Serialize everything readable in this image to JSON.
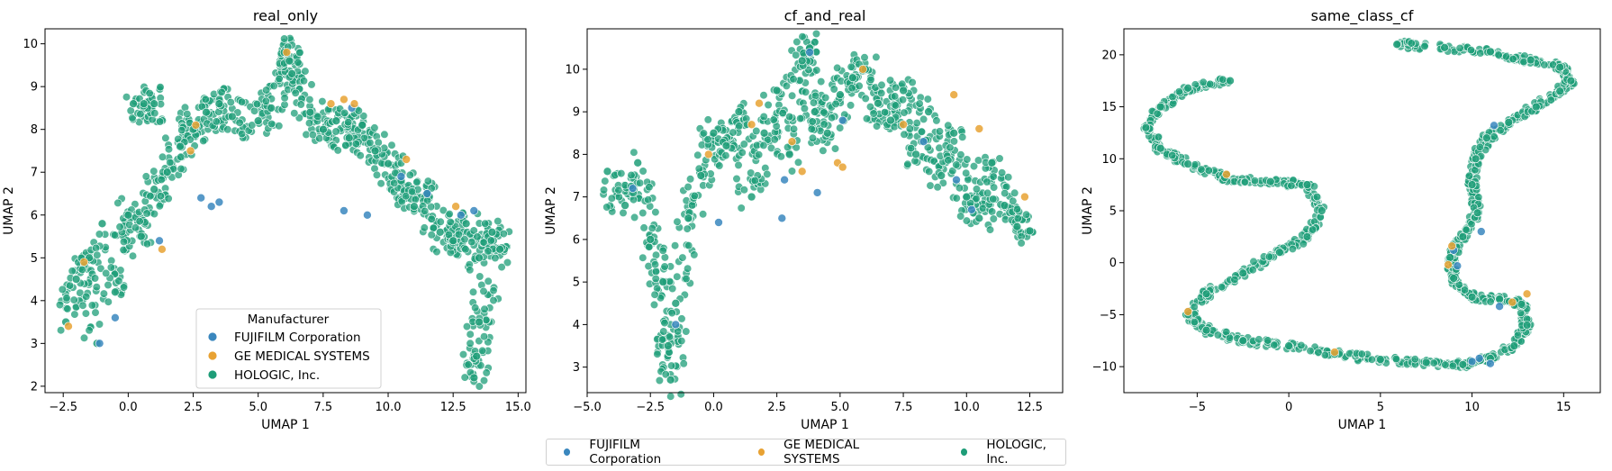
{
  "legend_title": "Manufacturer",
  "manufacturers": [
    {
      "name": "FUJIFILM Corporation",
      "color": "#3a87be"
    },
    {
      "name": "GE MEDICAL SYSTEMS",
      "color": "#e8a233"
    },
    {
      "name": "HOLOGIC, Inc.",
      "color": "#1e9d78"
    }
  ],
  "chart_data": [
    {
      "type": "scatter",
      "title": "real_only",
      "xlabel": "UMAP 1",
      "ylabel": "UMAP 2",
      "xlim": [
        -3.2,
        15.3
      ],
      "ylim": [
        1.85,
        10.35
      ],
      "xticks": [
        -2.5,
        0.0,
        2.5,
        5.0,
        7.5,
        10.0,
        12.5,
        15.0
      ],
      "xtick_labels": [
        "−2.5",
        "0.0",
        "2.5",
        "5.0",
        "7.5",
        "10.0",
        "12.5",
        "15.0"
      ],
      "yticks": [
        2,
        3,
        4,
        5,
        6,
        7,
        8,
        9,
        10
      ],
      "ytick_labels": [
        "2",
        "3",
        "4",
        "5",
        "6",
        "7",
        "8",
        "9",
        "10"
      ],
      "legend": "lower-center",
      "grid": false,
      "series": [
        {
          "name": "HOLOGIC, Inc.",
          "approx_shape": "arch from (-2.5,3.5) up to (5,8.5) then down to (14,5.5), with a tail near x=13.5 down to y=2.2",
          "points": [
            [
              -2.4,
              3.5
            ],
            [
              -2.0,
              4.5
            ],
            [
              -1.5,
              5.0
            ],
            [
              -1.2,
              3.0
            ],
            [
              -1.0,
              5.8
            ],
            [
              -0.5,
              4.2
            ],
            [
              0.0,
              6.0
            ],
            [
              0.5,
              5.5
            ],
            [
              1.0,
              6.6
            ],
            [
              1.5,
              7.0
            ],
            [
              2.0,
              7.6
            ],
            [
              2.5,
              8.0
            ],
            [
              3.0,
              8.4
            ],
            [
              3.5,
              8.6
            ],
            [
              4.0,
              8.3
            ],
            [
              5.0,
              8.2
            ],
            [
              5.5,
              8.5
            ],
            [
              6.0,
              9.8
            ],
            [
              6.2,
              9.6
            ],
            [
              6.3,
              9.3
            ],
            [
              7.0,
              8.4
            ],
            [
              7.5,
              8.0
            ],
            [
              8.0,
              8.2
            ],
            [
              8.5,
              7.8
            ],
            [
              9.0,
              8.1
            ],
            [
              9.5,
              7.5
            ],
            [
              10.0,
              7.2
            ],
            [
              10.5,
              6.8
            ],
            [
              11.0,
              6.2
            ],
            [
              11.5,
              6.5
            ],
            [
              12.0,
              5.6
            ],
            [
              12.5,
              5.4
            ],
            [
              13.0,
              5.8
            ],
            [
              13.5,
              5.0
            ],
            [
              14.0,
              5.6
            ],
            [
              14.3,
              5.2
            ],
            [
              13.5,
              3.5
            ],
            [
              13.4,
              2.7
            ],
            [
              13.3,
              2.2
            ],
            [
              0.2,
              8.6
            ],
            [
              0.6,
              8.6
            ],
            [
              1.0,
              8.6
            ]
          ]
        },
        {
          "name": "FUJIFILM Corporation",
          "points": [
            [
              -1.1,
              3.0
            ],
            [
              -0.5,
              3.6
            ],
            [
              1.2,
              5.4
            ],
            [
              2.8,
              6.4
            ],
            [
              3.2,
              6.2
            ],
            [
              3.5,
              6.3
            ],
            [
              8.3,
              6.1
            ],
            [
              8.6,
              8.5
            ],
            [
              9.2,
              6.0
            ],
            [
              10.5,
              6.9
            ],
            [
              11.5,
              6.5
            ],
            [
              12.8,
              6.0
            ],
            [
              13.3,
              6.1
            ]
          ]
        },
        {
          "name": "GE MEDICAL SYSTEMS",
          "points": [
            [
              -2.3,
              3.4
            ],
            [
              -1.7,
              4.9
            ],
            [
              1.3,
              5.2
            ],
            [
              2.4,
              7.5
            ],
            [
              2.6,
              8.1
            ],
            [
              6.1,
              9.8
            ],
            [
              7.8,
              8.6
            ],
            [
              8.3,
              8.7
            ],
            [
              8.7,
              8.6
            ],
            [
              10.7,
              7.3
            ],
            [
              12.6,
              6.2
            ]
          ]
        }
      ]
    },
    {
      "type": "scatter",
      "title": "cf_and_real",
      "xlabel": "UMAP 1",
      "ylabel": "UMAP 2",
      "xlim": [
        -5.0,
        13.8
      ],
      "ylim": [
        2.4,
        10.95
      ],
      "xticks": [
        -5.0,
        -2.5,
        0.0,
        2.5,
        5.0,
        7.5,
        10.0,
        12.5
      ],
      "xtick_labels": [
        "−5.0",
        "−2.5",
        "0.0",
        "2.5",
        "5.0",
        "7.5",
        "10.0",
        "12.5"
      ],
      "yticks": [
        3,
        4,
        5,
        6,
        7,
        8,
        9,
        10
      ],
      "ytick_labels": [
        "3",
        "4",
        "5",
        "6",
        "7",
        "8",
        "9",
        "10"
      ],
      "grid": false,
      "series": [
        {
          "name": "HOLOGIC, Inc.",
          "approx_shape": "broad arch from (-4,7.5) up to (4,10) and down to (12.5,6.2), with a lobe down to (-1.8,2.7)",
          "points": [
            [
              -4.2,
              7.6
            ],
            [
              -3.5,
              6.8
            ],
            [
              -3.0,
              7.8
            ],
            [
              -2.5,
              6.0
            ],
            [
              -2.0,
              5.0
            ],
            [
              -1.8,
              3.5
            ],
            [
              -1.7,
              2.7
            ],
            [
              -1.5,
              4.5
            ],
            [
              -1.0,
              6.5
            ],
            [
              -0.5,
              7.5
            ],
            [
              0.0,
              8.5
            ],
            [
              0.5,
              8.2
            ],
            [
              1.0,
              9.0
            ],
            [
              1.5,
              7.0
            ],
            [
              2.0,
              8.5
            ],
            [
              2.5,
              9.5
            ],
            [
              3.0,
              8.0
            ],
            [
              3.5,
              10.2
            ],
            [
              3.8,
              10.5
            ],
            [
              4.0,
              9.0
            ],
            [
              4.5,
              8.5
            ],
            [
              5.0,
              9.4
            ],
            [
              5.5,
              9.8
            ],
            [
              6.0,
              10.0
            ],
            [
              6.5,
              9.2
            ],
            [
              7.0,
              8.8
            ],
            [
              7.5,
              9.5
            ],
            [
              8.0,
              8.0
            ],
            [
              8.5,
              9.0
            ],
            [
              9.0,
              7.5
            ],
            [
              9.5,
              8.5
            ],
            [
              10.0,
              7.0
            ],
            [
              10.5,
              6.5
            ],
            [
              11.0,
              7.8
            ],
            [
              11.5,
              6.8
            ],
            [
              12.0,
              6.3
            ],
            [
              12.5,
              6.2
            ]
          ]
        },
        {
          "name": "FUJIFILM Corporation",
          "points": [
            [
              -3.2,
              7.2
            ],
            [
              -1.5,
              4.0
            ],
            [
              0.2,
              6.4
            ],
            [
              2.7,
              6.5
            ],
            [
              2.8,
              7.4
            ],
            [
              3.8,
              10.4
            ],
            [
              4.1,
              7.1
            ],
            [
              5.1,
              8.8
            ],
            [
              8.3,
              8.3
            ],
            [
              9.6,
              7.4
            ],
            [
              10.2,
              6.7
            ]
          ]
        },
        {
          "name": "GE MEDICAL SYSTEMS",
          "points": [
            [
              -0.2,
              8.0
            ],
            [
              1.5,
              8.7
            ],
            [
              1.8,
              9.2
            ],
            [
              3.1,
              8.3
            ],
            [
              3.5,
              7.6
            ],
            [
              4.9,
              7.8
            ],
            [
              5.1,
              7.7
            ],
            [
              5.9,
              10.0
            ],
            [
              7.5,
              8.7
            ],
            [
              9.5,
              9.4
            ],
            [
              10.5,
              8.6
            ],
            [
              12.3,
              7.0
            ]
          ]
        }
      ]
    },
    {
      "type": "scatter",
      "title": "same_class_cf",
      "xlabel": "UMAP 1",
      "ylabel": "UMAP 2",
      "xlim": [
        -9.0,
        17.0
      ],
      "ylim": [
        -12.5,
        22.5
      ],
      "xticks": [
        -5,
        0,
        5,
        10,
        15
      ],
      "xtick_labels": [
        "−5",
        "0",
        "5",
        "10",
        "15"
      ],
      "yticks": [
        -10,
        -5,
        0,
        5,
        10,
        15,
        20
      ],
      "ytick_labels": [
        "−10",
        "−5",
        "0",
        "5",
        "10",
        "15",
        "20"
      ],
      "grid": false,
      "series": [
        {
          "name": "HOLOGIC, Inc.",
          "approx_shape": "one long serpentine manifold",
          "points": [
            [
              -3.2,
              17.5
            ],
            [
              -5.5,
              16.8
            ],
            [
              -7.0,
              15.0
            ],
            [
              -7.8,
              13.0
            ],
            [
              -7.0,
              11.0
            ],
            [
              -5.5,
              9.5
            ],
            [
              -3.5,
              8.2
            ],
            [
              -1.0,
              7.8
            ],
            [
              1.0,
              7.5
            ],
            [
              1.8,
              5.0
            ],
            [
              1.0,
              2.5
            ],
            [
              -0.5,
              1.0
            ],
            [
              -2.5,
              -1.0
            ],
            [
              -4.5,
              -3.0
            ],
            [
              -5.5,
              -5.0
            ],
            [
              -4.5,
              -6.5
            ],
            [
              -2.5,
              -7.5
            ],
            [
              0.0,
              -8.0
            ],
            [
              2.5,
              -8.8
            ],
            [
              5.0,
              -9.3
            ],
            [
              7.5,
              -9.6
            ],
            [
              9.5,
              -9.8
            ],
            [
              11.0,
              -9.2
            ],
            [
              12.3,
              -8.0
            ],
            [
              13.0,
              -6.0
            ],
            [
              12.7,
              -4.0
            ],
            [
              11.5,
              -3.5
            ],
            [
              10.0,
              -3.3
            ],
            [
              9.0,
              -1.5
            ],
            [
              8.8,
              0.5
            ],
            [
              9.5,
              2.5
            ],
            [
              10.3,
              4.8
            ],
            [
              10.0,
              7.5
            ],
            [
              10.2,
              10.0
            ],
            [
              10.8,
              12.0
            ],
            [
              12.0,
              13.5
            ],
            [
              13.5,
              15.0
            ],
            [
              14.8,
              16.5
            ],
            [
              15.4,
              17.5
            ],
            [
              14.8,
              18.8
            ],
            [
              13.2,
              19.5
            ],
            [
              11.0,
              20.3
            ],
            [
              8.5,
              20.7
            ],
            [
              5.9,
              21.0
            ]
          ]
        },
        {
          "name": "FUJIFILM Corporation",
          "points": [
            [
              9.2,
              -0.3
            ],
            [
              10.0,
              -9.5
            ],
            [
              10.4,
              -9.2
            ],
            [
              11.5,
              -4.2
            ],
            [
              10.5,
              3.0
            ],
            [
              11.2,
              13.2
            ],
            [
              9.0,
              1.2
            ],
            [
              11.0,
              -9.7
            ]
          ]
        },
        {
          "name": "GE MEDICAL SYSTEMS",
          "points": [
            [
              -3.4,
              8.5
            ],
            [
              -5.5,
              -4.7
            ],
            [
              8.9,
              1.6
            ],
            [
              8.7,
              -0.2
            ],
            [
              12.2,
              -3.8
            ],
            [
              13.0,
              -3.0
            ],
            [
              2.5,
              -8.6
            ]
          ]
        }
      ]
    }
  ]
}
